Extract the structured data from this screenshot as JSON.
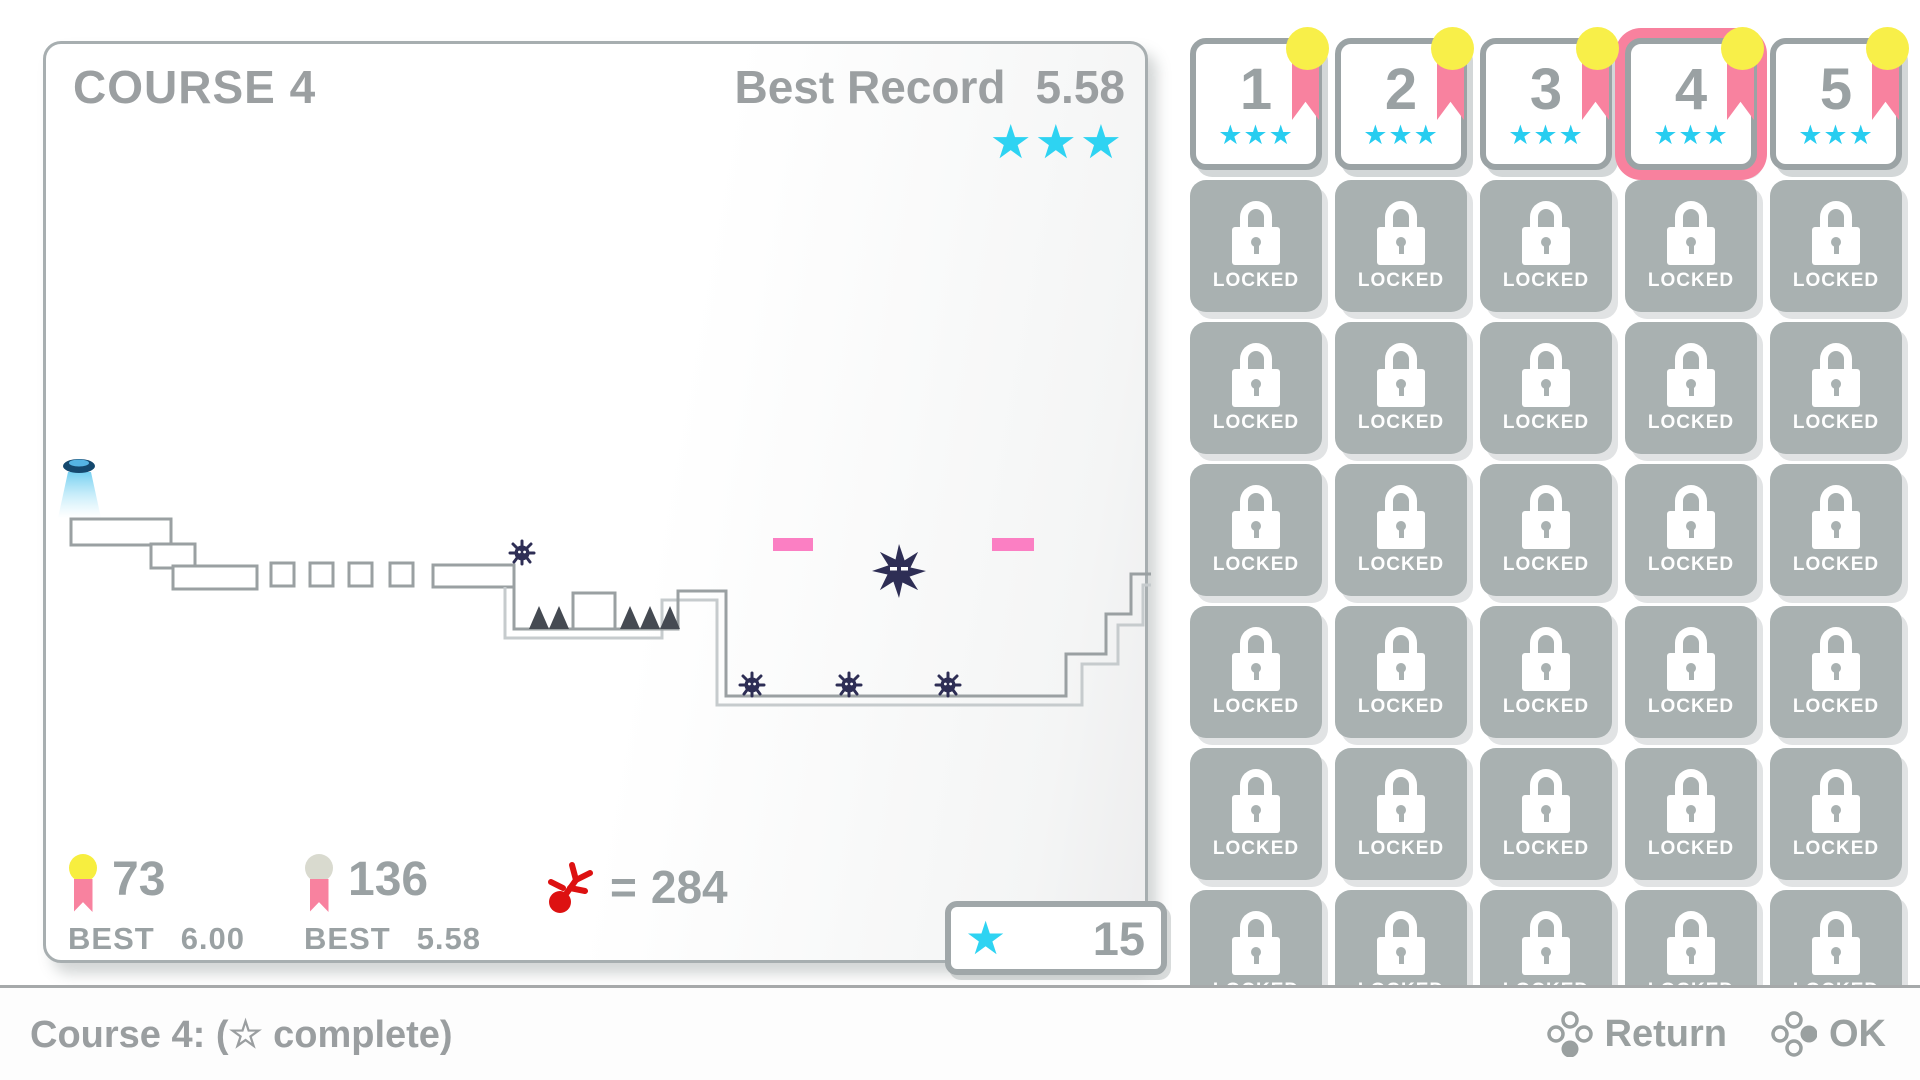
{
  "preview": {
    "title": "COURSE 4",
    "record": {
      "label": "Best Record",
      "value": "5.58",
      "stars": 3
    },
    "stats": {
      "gold_medal": {
        "count": "73",
        "best_label": "BEST",
        "best_time": "6.00"
      },
      "silver_medal": {
        "count": "136",
        "best_label": "BEST",
        "best_time": "5.58"
      },
      "deaths": {
        "equals": "=",
        "count": "284"
      }
    },
    "star_total": "15",
    "map": {
      "spawn_beacons": 1,
      "floating_blocks": 4,
      "spike_count": 5,
      "urchin_enemies": 4,
      "shuriken_enemies": 1,
      "pink_platforms": 2
    }
  },
  "level_grid": {
    "levels": [
      {
        "number": "1",
        "stars": 3,
        "medal": true,
        "selected": false
      },
      {
        "number": "2",
        "stars": 3,
        "medal": true,
        "selected": false
      },
      {
        "number": "3",
        "stars": 3,
        "medal": true,
        "selected": false
      },
      {
        "number": "4",
        "stars": 3,
        "medal": true,
        "selected": true
      },
      {
        "number": "5",
        "stars": 3,
        "medal": true,
        "selected": false
      }
    ],
    "locked_label": "LOCKED",
    "locked_count": 30
  },
  "bottom_bar": {
    "course_status": "Course 4: (☆ complete)",
    "return_label": "Return",
    "ok_label": "OK"
  },
  "colors": {
    "accent_cyan": "#2ed3f2",
    "accent_pink": "#f8819e",
    "accent_yellow": "#f8ef49",
    "locked_gray": "#a9b1b1",
    "text_gray": "#9aa1a3",
    "death_red": "#dd1111",
    "enemy_navy": "#2e2e55",
    "platform_pink": "#fb7fc3"
  }
}
